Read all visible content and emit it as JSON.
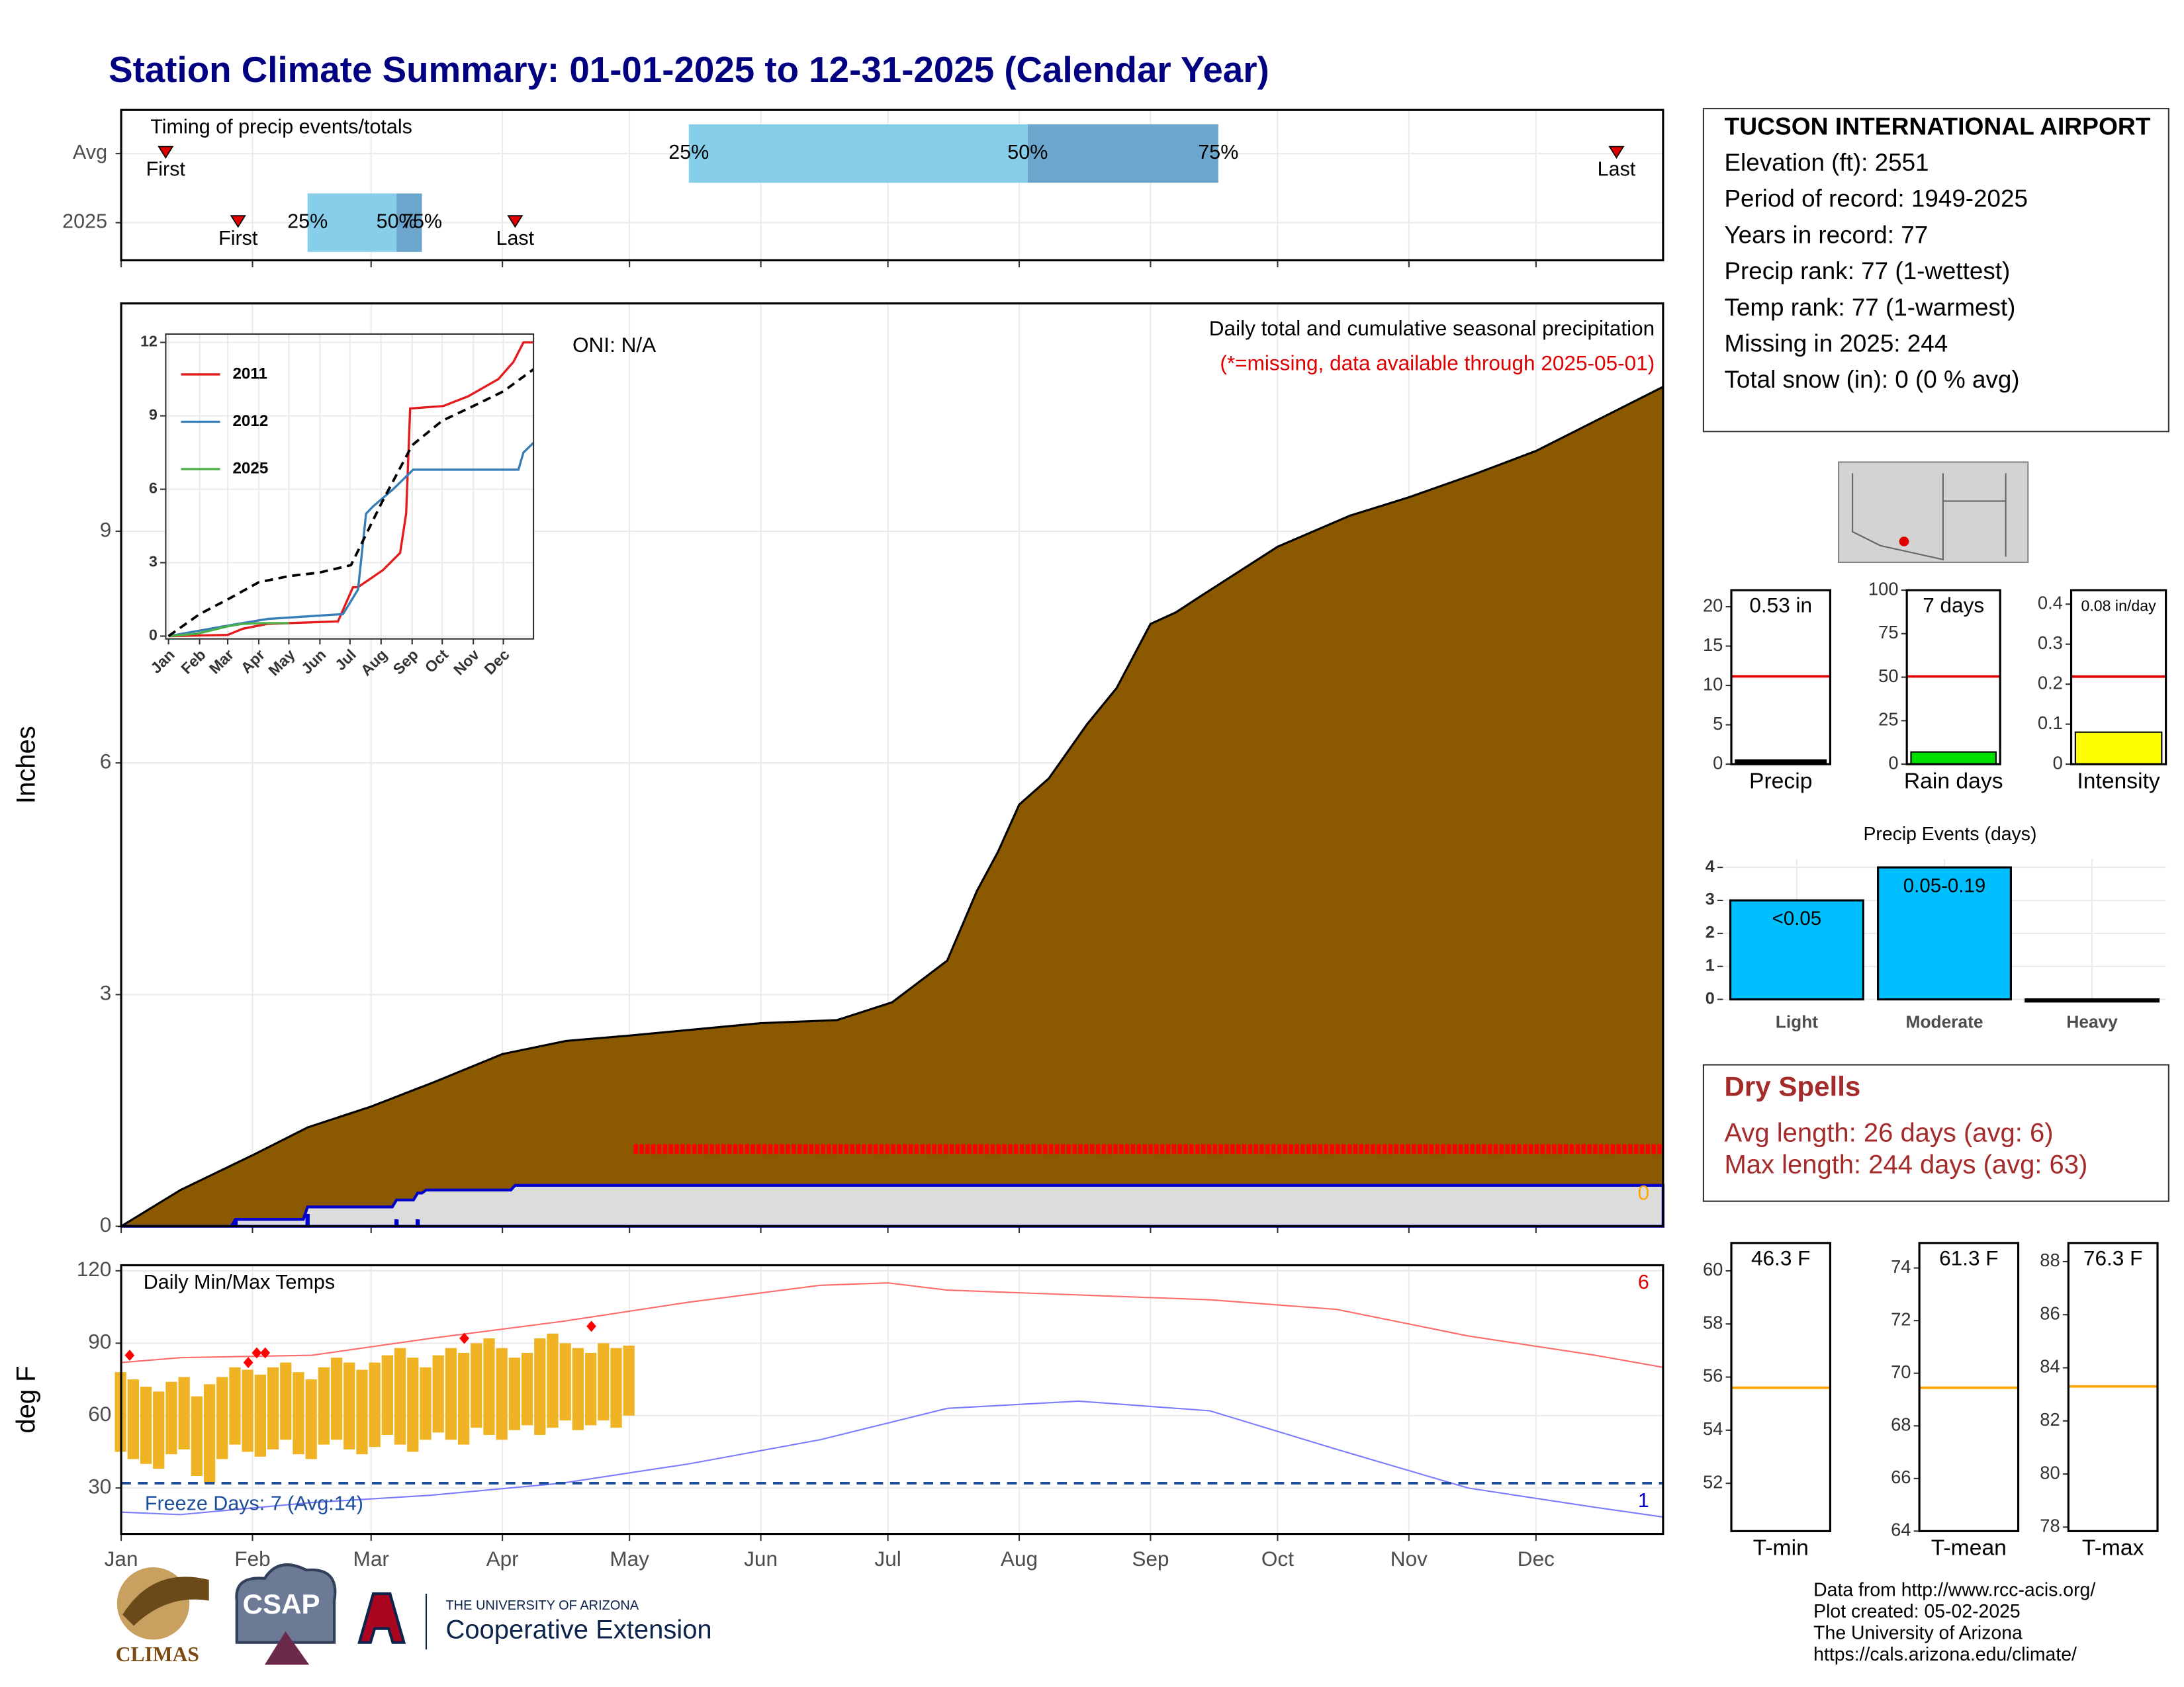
{
  "title": "Station Climate Summary: 01-01-2025 to 12-31-2025 (Calendar Year)",
  "station": {
    "name": "TUCSON INTERNATIONAL AIRPORT",
    "lines": [
      "Elevation (ft): 2551",
      "Period of record: 1949-2025",
      "Years in record: 77",
      "Precip rank: 77 (1-wettest)",
      "Temp rank: 77 (1-warmest)",
      "Missing in 2025: 244",
      "Total snow (in): 0 (0 % avg)"
    ]
  },
  "dry_spells": {
    "title": "Dry Spells",
    "lines": [
      "Avg length: 26 days (avg: 6)",
      "Max length: 244 days (avg: 63)"
    ]
  },
  "footer": [
    "Data from http://www.rcc-acis.org/",
    "Plot created: 05-02-2025",
    "The University of Arizona",
    "https://cals.arizona.edu/climate/"
  ],
  "logos": {
    "climas": "CLIMAS",
    "csap": "CSAP",
    "ua": "THE UNIVERSITY OF ARIZONA",
    "coop": "Cooperative Extension"
  },
  "chart_data": [
    {
      "type": "timing",
      "title": "Timing of precip events/totals",
      "categories": [
        "Avg",
        "2025"
      ],
      "first": [
        11.5,
        28.6
      ],
      "q25": [
        135,
        45
      ],
      "q50": [
        215,
        66
      ],
      "q75": [
        260,
        72
      ],
      "last": [
        354,
        94
      ],
      "first_label": "First",
      "last_label": "Last",
      "q_labels": [
        "25%",
        "50%",
        "75%"
      ],
      "colors": [
        "#87ceeb",
        "#6ca6cd"
      ],
      "marker_color": "#e00000",
      "xlim": [
        1,
        365
      ],
      "xticks": [
        1,
        32,
        60,
        91,
        121,
        152,
        182,
        213,
        244,
        274,
        305,
        335
      ]
    },
    {
      "type": "area",
      "ylabel": "Inches",
      "ylim": [
        0,
        11.95
      ],
      "yticks": [
        0,
        3,
        6,
        9
      ],
      "xlim": [
        1,
        365
      ],
      "xticks": [
        1,
        32,
        60,
        91,
        121,
        152,
        182,
        213,
        244,
        274,
        305,
        335
      ],
      "annotation": "ONI: N/A",
      "subtitle": "Daily total and cumulative seasonal precipitation",
      "note": "(*=missing, data available through 2025-05-01)",
      "count_label": "0",
      "series": [
        {
          "color": "#8b5a00",
          "x": [
            1,
            15,
            32,
            45,
            60,
            75,
            91,
            106,
            121,
            152,
            170,
            183,
            196,
            203,
            208,
            213,
            220,
            229,
            236,
            244,
            250,
            255,
            274,
            291,
            305,
            321,
            335,
            365
          ],
          "values": [
            0,
            0.47,
            0.92,
            1.28,
            1.55,
            1.87,
            2.23,
            2.4,
            2.47,
            2.63,
            2.67,
            2.9,
            3.44,
            4.34,
            4.85,
            5.46,
            5.8,
            6.5,
            6.97,
            7.8,
            7.95,
            8.13,
            8.8,
            9.2,
            9.44,
            9.75,
            10.04,
            10.87
          ]
        },
        {
          "color": "#0000cd",
          "fill": "#dcdcdc",
          "x": [
            1,
            27,
            28,
            44,
            45,
            65,
            66,
            70,
            71,
            72,
            73,
            93,
            94,
            365
          ],
          "values": [
            0,
            0,
            0.09,
            0.09,
            0.25,
            0.25,
            0.34,
            0.34,
            0.43,
            0.43,
            0.47,
            0.47,
            0.53,
            0.53
          ]
        }
      ],
      "daily": {
        "color": "#0000cd",
        "x": [
          28,
          45,
          66,
          71
        ],
        "values": [
          0.09,
          0.16,
          0.09,
          0.09
        ]
      },
      "missing": {
        "color": "#ff0000",
        "x": [
          122,
          365
        ],
        "y": 1.0
      }
    },
    {
      "type": "line",
      "ylim": [
        0,
        12
      ],
      "yticks": [
        0,
        3,
        6,
        9,
        12
      ],
      "xlim": [
        1,
        365
      ],
      "xticks": [
        {
          "value": 1,
          "label": "Jan"
        },
        {
          "value": 32,
          "label": "Feb"
        },
        {
          "value": 60,
          "label": "Mar"
        },
        {
          "value": 91,
          "label": "Apr"
        },
        {
          "value": 121,
          "label": "May"
        },
        {
          "value": 152,
          "label": "Jun"
        },
        {
          "value": 182,
          "label": "Jul"
        },
        {
          "value": 213,
          "label": "Aug"
        },
        {
          "value": 244,
          "label": "Sep"
        },
        {
          "value": 274,
          "label": "Oct"
        },
        {
          "value": 305,
          "label": "Nov"
        },
        {
          "value": 335,
          "label": "Dec"
        }
      ],
      "legend": "top-left",
      "series": [
        {
          "name": "2011",
          "color": "#e41a1c",
          "x": [
            1,
            60,
            75,
            100,
            170,
            185,
            190,
            215,
            232,
            238,
            242,
            275,
            300,
            330,
            345,
            355,
            365
          ],
          "values": [
            0,
            0.05,
            0.3,
            0.5,
            0.6,
            2.0,
            2.0,
            2.7,
            3.4,
            5.0,
            9.3,
            9.4,
            9.8,
            10.5,
            11.2,
            12.0,
            12.0
          ]
        },
        {
          "name": "2012",
          "color": "#377eb8",
          "x": [
            1,
            70,
            100,
            175,
            190,
            198,
            205,
            225,
            245,
            350,
            355,
            365
          ],
          "values": [
            0,
            0.5,
            0.7,
            0.9,
            1.9,
            5.0,
            5.3,
            6.0,
            6.8,
            6.8,
            7.5,
            7.9
          ]
        },
        {
          "name": "2025",
          "color": "#4daf4a",
          "x": [
            1,
            30,
            60,
            75,
            95,
            121
          ],
          "values": [
            0,
            0.1,
            0.4,
            0.5,
            0.53,
            0.53
          ]
        },
        {
          "color": "#000000",
          "dash": true,
          "x": [
            1,
            32,
            60,
            91,
            121,
            152,
            183,
            213,
            244,
            274,
            305,
            335,
            365
          ],
          "values": [
            0,
            0.9,
            1.5,
            2.2,
            2.45,
            2.6,
            2.9,
            5.4,
            7.8,
            8.8,
            9.4,
            10.0,
            10.9
          ]
        }
      ]
    },
    {
      "type": "range",
      "title": "Daily Min/Max Temps",
      "ylabel": "deg F",
      "ylim": [
        11,
        122.3
      ],
      "yticks": [
        30,
        60,
        90,
        120
      ],
      "xlim": [
        1,
        365
      ],
      "xticks": [
        {
          "value": 1,
          "label": "Jan"
        },
        {
          "value": 32,
          "label": "Feb"
        },
        {
          "value": 60,
          "label": "Mar"
        },
        {
          "value": 91,
          "label": "Apr"
        },
        {
          "value": 121,
          "label": "May"
        },
        {
          "value": 152,
          "label": "Jun"
        },
        {
          "value": 182,
          "label": "Jul"
        },
        {
          "value": 213,
          "label": "Aug"
        },
        {
          "value": 244,
          "label": "Sep"
        },
        {
          "value": 274,
          "label": "Oct"
        },
        {
          "value": 305,
          "label": "Nov"
        },
        {
          "value": 335,
          "label": "Dec"
        }
      ],
      "series": [
        {
          "color": "#ff6b6b",
          "x": [
            1,
            15,
            46,
            74,
            105,
            135,
            166,
            182,
            196,
            227,
            258,
            288,
            319,
            349,
            365
          ],
          "values": [
            82,
            84,
            85,
            92,
            99,
            107,
            114,
            115,
            112,
            110,
            108,
            104,
            93,
            85,
            80
          ]
        },
        {
          "color": "#7b7bff",
          "x": [
            1,
            15,
            46,
            74,
            105,
            135,
            166,
            196,
            227,
            258,
            288,
            319,
            349,
            365
          ],
          "values": [
            20,
            19,
            24,
            27,
            32,
            40,
            50,
            63,
            66,
            62,
            46,
            30,
            22,
            18
          ]
        }
      ],
      "range": {
        "color": "#f0b323",
        "x": [
          1,
          4,
          7,
          10,
          13,
          16,
          19,
          22,
          25,
          28,
          31,
          34,
          37,
          40,
          43,
          46,
          49,
          52,
          55,
          58,
          61,
          64,
          67,
          70,
          73,
          76,
          79,
          82,
          85,
          88,
          91,
          94,
          97,
          100,
          103,
          106,
          109,
          112,
          115,
          118,
          121
        ],
        "low": [
          45,
          42,
          40,
          38,
          44,
          46,
          35,
          32,
          42,
          48,
          45,
          43,
          46,
          50,
          44,
          42,
          48,
          50,
          46,
          44,
          47,
          52,
          48,
          45,
          50,
          53,
          50,
          48,
          55,
          52,
          50,
          54,
          56,
          52,
          55,
          58,
          54,
          56,
          58,
          55,
          60
        ],
        "high": [
          78,
          75,
          72,
          70,
          74,
          76,
          68,
          73,
          76,
          80,
          79,
          77,
          80,
          82,
          78,
          75,
          80,
          84,
          82,
          79,
          82,
          85,
          88,
          84,
          80,
          85,
          88,
          86,
          90,
          92,
          88,
          84,
          86,
          92,
          94,
          90,
          88,
          86,
          90,
          88,
          89
        ]
      },
      "records": {
        "color": "#ff0000",
        "x": [
          3,
          31,
          33,
          35,
          82,
          112
        ],
        "values": [
          85,
          82,
          86,
          86,
          92,
          97
        ]
      },
      "freeze": {
        "value": 32,
        "color": "#1f4e99",
        "label": "Freeze Days: 7 (Avg:14)"
      },
      "count_labels": [
        {
          "text": "6",
          "color": "#e00000"
        },
        {
          "text": "1",
          "color": "#0000cd"
        }
      ]
    },
    {
      "type": "bar",
      "categories": [
        "Precip"
      ],
      "values": [
        0.53
      ],
      "value_labels": [
        "0.53 in"
      ],
      "avg": 11.15,
      "avg_color": "#e00000",
      "color": "#000000",
      "ylim": [
        0,
        22.1
      ],
      "yticks": [
        0,
        5,
        10,
        15,
        20
      ]
    },
    {
      "type": "bar",
      "categories": [
        "Rain days"
      ],
      "values": [
        7
      ],
      "value_labels": [
        "7 days"
      ],
      "avg": 50.4,
      "avg_color": "#e00000",
      "color": "#00e000",
      "ylim": [
        0,
        100
      ],
      "yticks": [
        0,
        25,
        50,
        75,
        100
      ]
    },
    {
      "type": "bar",
      "categories": [
        "Intensity"
      ],
      "values": [
        0.08
      ],
      "value_labels": [
        "0.08 in/day"
      ],
      "avg": 0.219,
      "avg_color": "#e00000",
      "color": "#ffff00",
      "ylim": [
        0,
        0.435
      ],
      "yticks": [
        0,
        0.1,
        0.2,
        0.3,
        0.4
      ]
    },
    {
      "type": "bar",
      "title": "Precip Events (days)",
      "categories": [
        "Light",
        "Moderate",
        "Heavy"
      ],
      "values": [
        3,
        4,
        0
      ],
      "bar_labels": [
        "<0.05",
        "0.05-0.19",
        null
      ],
      "color": "#00bfff",
      "ylim": [
        0,
        4.26
      ],
      "yticks": [
        0,
        1,
        2,
        3,
        4
      ],
      "grid": true
    },
    {
      "type": "bar",
      "categories": [
        "T-min"
      ],
      "values": [
        46.3
      ],
      "value_labels": [
        "46.3 F"
      ],
      "avg": 55.6,
      "avg_color": "#ffa500",
      "color": "#ffa500",
      "ylim": [
        50.2,
        61.05
      ],
      "yticks": [
        52,
        54,
        56,
        58,
        60
      ]
    },
    {
      "type": "bar",
      "categories": [
        "T-mean"
      ],
      "values": [
        61.3
      ],
      "value_labels": [
        "61.3 F"
      ],
      "avg": 69.45,
      "avg_color": "#ffa500",
      "color": "#ffa500",
      "ylim": [
        64,
        74.95
      ],
      "yticks": [
        64,
        66,
        68,
        70,
        72,
        74
      ]
    },
    {
      "type": "bar",
      "categories": [
        "T-max"
      ],
      "values": [
        76.3
      ],
      "value_labels": [
        "76.3 F"
      ],
      "avg": 83.3,
      "avg_color": "#ffa500",
      "color": "#ffa500",
      "ylim": [
        77.85,
        88.7
      ],
      "yticks": [
        78,
        80,
        82,
        84,
        86,
        88
      ]
    }
  ]
}
